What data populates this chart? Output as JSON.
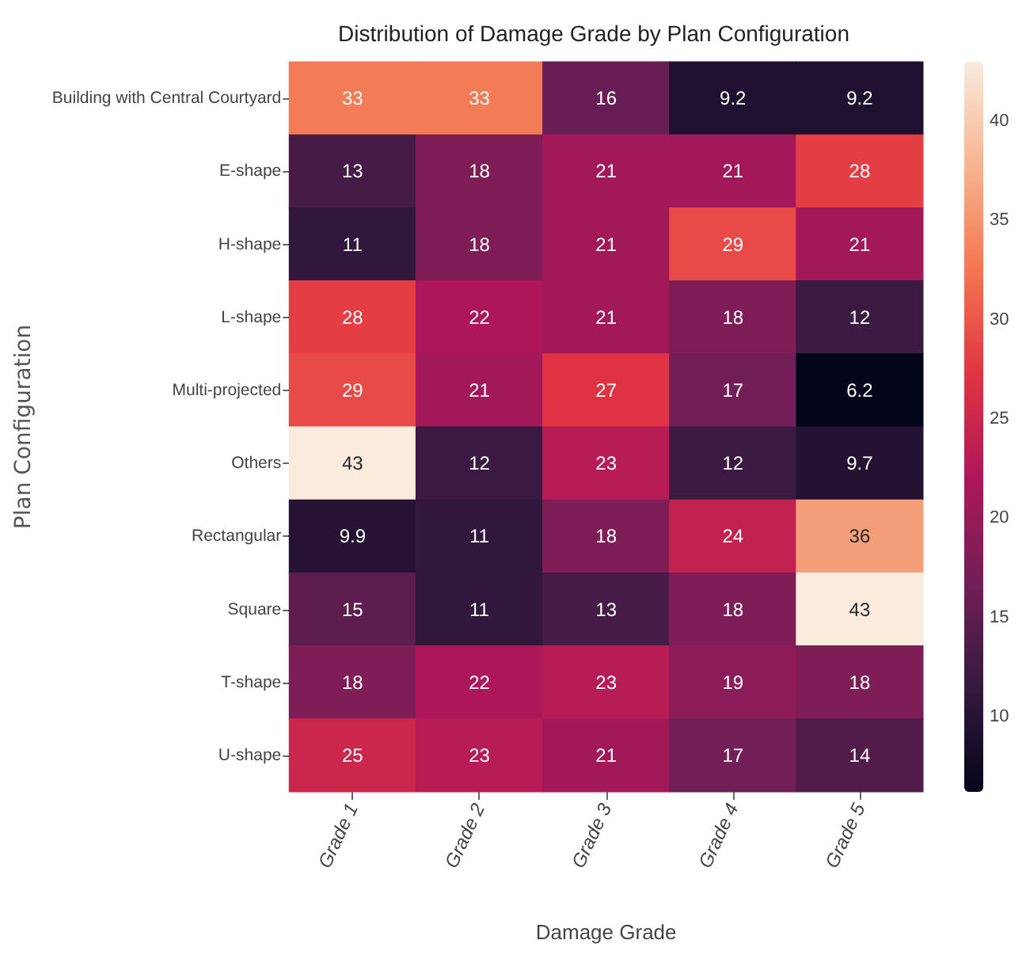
{
  "chart_data": {
    "type": "heatmap",
    "title": "Distribution of Damage Grade by Plan Configuration",
    "xlabel": "Damage Grade",
    "ylabel": "Plan Configuration",
    "categories": [
      "Grade 1",
      "Grade 2",
      "Grade 3",
      "Grade 4",
      "Grade 5"
    ],
    "y_categories": [
      "Building with Central Courtyard",
      "E-shape",
      "H-shape",
      "L-shape",
      "Multi-projected",
      "Others",
      "Rectangular",
      "Square",
      "T-shape",
      "U-shape"
    ],
    "cells": [
      [
        33,
        33,
        16,
        9.2,
        9.2
      ],
      [
        13,
        18,
        21,
        21,
        28
      ],
      [
        11,
        18,
        21,
        29,
        21
      ],
      [
        28,
        22,
        21,
        18,
        12
      ],
      [
        29,
        21,
        27,
        17,
        6.2
      ],
      [
        43,
        12,
        23,
        12,
        9.7
      ],
      [
        9.9,
        11,
        18,
        24,
        36
      ],
      [
        15,
        11,
        13,
        18,
        43
      ],
      [
        18,
        22,
        23,
        19,
        18
      ],
      [
        25,
        23,
        21,
        17,
        14
      ]
    ],
    "data_labels": true,
    "clim": [
      6.2,
      43
    ],
    "cticks": [
      10,
      15,
      20,
      25,
      30,
      35,
      40
    ]
  }
}
